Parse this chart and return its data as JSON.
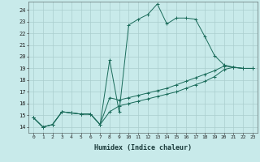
{
  "xlabel": "Humidex (Indice chaleur)",
  "background_color": "#c8eaea",
  "grid_color": "#aacece",
  "line_color": "#1a6b5a",
  "xlim": [
    -0.5,
    23.5
  ],
  "ylim": [
    13.5,
    24.7
  ],
  "yticks": [
    14,
    15,
    16,
    17,
    18,
    19,
    20,
    21,
    22,
    23,
    24
  ],
  "xticks": [
    0,
    1,
    2,
    3,
    4,
    5,
    6,
    7,
    8,
    9,
    10,
    11,
    12,
    13,
    14,
    15,
    16,
    17,
    18,
    19,
    20,
    21,
    22,
    23
  ],
  "series": [
    {
      "x": [
        0,
        1,
        2,
        3,
        4,
        5,
        6,
        7,
        8,
        9,
        10,
        11,
        12,
        13,
        14,
        15,
        16,
        17,
        18,
        19,
        20,
        21,
        22,
        23
      ],
      "y": [
        14.8,
        14.0,
        14.2,
        15.3,
        15.2,
        15.1,
        15.1,
        14.2,
        19.7,
        15.3,
        22.7,
        23.2,
        23.6,
        24.5,
        22.8,
        23.3,
        23.3,
        23.2,
        21.7,
        20.1,
        19.3,
        19.1,
        19.0,
        19.0
      ]
    },
    {
      "x": [
        0,
        1,
        2,
        3,
        4,
        5,
        6,
        7,
        8,
        9,
        10,
        11,
        12,
        13,
        14,
        15,
        16,
        17,
        18,
        19,
        20,
        21,
        22,
        23
      ],
      "y": [
        14.8,
        14.0,
        14.2,
        15.3,
        15.2,
        15.1,
        15.1,
        14.2,
        16.5,
        16.3,
        16.5,
        16.7,
        16.9,
        17.1,
        17.3,
        17.6,
        17.9,
        18.2,
        18.5,
        18.8,
        19.2,
        19.1,
        19.0,
        19.0
      ]
    },
    {
      "x": [
        0,
        1,
        2,
        3,
        4,
        5,
        6,
        7,
        8,
        9,
        10,
        11,
        12,
        13,
        14,
        15,
        16,
        17,
        18,
        19,
        20,
        21,
        22,
        23
      ],
      "y": [
        14.8,
        14.0,
        14.2,
        15.3,
        15.2,
        15.1,
        15.1,
        14.2,
        15.3,
        15.8,
        16.0,
        16.2,
        16.4,
        16.6,
        16.8,
        17.0,
        17.3,
        17.6,
        17.9,
        18.3,
        18.9,
        19.1,
        19.0,
        19.0
      ]
    }
  ]
}
